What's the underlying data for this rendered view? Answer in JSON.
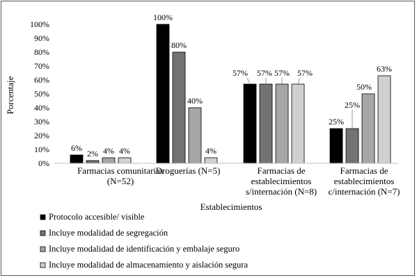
{
  "chart_data": {
    "type": "bar",
    "title": "",
    "xlabel": "Establecimientos",
    "ylabel": "Porcentaje",
    "ylim": [
      0,
      100
    ],
    "yticks": [
      "0%",
      "10%",
      "20%",
      "30%",
      "40%",
      "50%",
      "60%",
      "70%",
      "80%",
      "90%",
      "100%"
    ],
    "grid": false,
    "legend_position": "bottom-left",
    "categories": [
      [
        "Farmacias comunitarias",
        "(N=52)"
      ],
      [
        "Droguerías (N=5)"
      ],
      [
        "Farmacias de",
        "establecimientos",
        "s/internación (N=8)"
      ],
      [
        "Farmacias de",
        "establecimientos",
        "c/internación (N=7)"
      ]
    ],
    "series": [
      {
        "name": "Protocolo accesible/ visible",
        "color": "#000000",
        "values": [
          6,
          100,
          57,
          25
        ],
        "labels": [
          "6%",
          "100%",
          "57%",
          "25%"
        ]
      },
      {
        "name": "Incluye modalidad de segregación",
        "color": "#737373",
        "values": [
          2,
          80,
          57,
          25
        ],
        "labels": [
          "2%",
          "80%",
          "57%",
          "25%"
        ]
      },
      {
        "name": "Incluye modalidad de identificación y embalaje seguro",
        "color": "#a6a6a6",
        "values": [
          4,
          40,
          57,
          50
        ],
        "labels": [
          "4%",
          "40%",
          "57%",
          "50%"
        ]
      },
      {
        "name": "Incluye modalidad de almacenamiento y aislación segura",
        "color": "#d0d0d0",
        "values": [
          4,
          4,
          57,
          63
        ],
        "labels": [
          "4%",
          "4%",
          "57%",
          "63%"
        ]
      }
    ]
  }
}
